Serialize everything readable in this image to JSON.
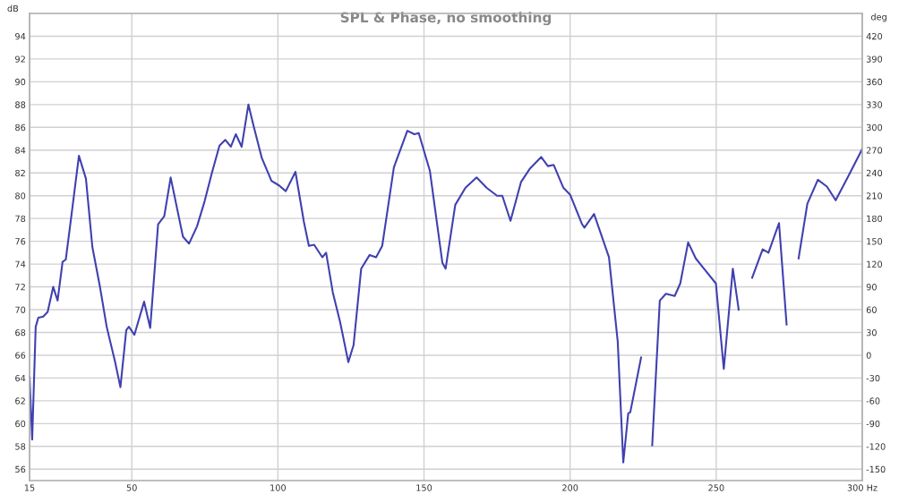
{
  "chart_data": {
    "type": "line",
    "title": "SPL & Phase, no smoothing",
    "ylabel": "dB",
    "y2label": "deg",
    "x": [
      15,
      15.9,
      17.1,
      18.0,
      19.7,
      21.2,
      23.1,
      24.6,
      26.3,
      27.4,
      29.2,
      31.9,
      34.3,
      36.5,
      39.1,
      41.4,
      44.2,
      46.1,
      48.1,
      49.0,
      50.9,
      54.2,
      56.3,
      59.0,
      61.1,
      63.3,
      67.5,
      69.6,
      72.3,
      74.9,
      77.4,
      80.0,
      82.0,
      83.9,
      85.6,
      87.6,
      89.9,
      91.7,
      94.5,
      97.8,
      100.4,
      102.7,
      106.0,
      108.9,
      110.6,
      112.4,
      115.2,
      116.5,
      118.8,
      121.3,
      124.1,
      125.9,
      128.5,
      131.4,
      133.6,
      135.7,
      139.7,
      144.3,
      146.7,
      148.2,
      152.0,
      156.3,
      157.4,
      160.7,
      164.2,
      168.0,
      171.4,
      175.0,
      176.8,
      179.6,
      183.2,
      186.3,
      190.1,
      192.4,
      194.4,
      197.7,
      200.0,
      204.1,
      204.9,
      208.2,
      213.3,
      216.3,
      218.2,
      219.9,
      220.6,
      224.3,
      226.8,
      228.1,
      230.7,
      232.8,
      235.8,
      237.7,
      240.4,
      243.0,
      246.1,
      249.9,
      252.6,
      255.7,
      257.7,
      259.8,
      262.3,
      265.9,
      267.9,
      271.5,
      274.1,
      275.6,
      278.2,
      281.2,
      284.8,
      287.9,
      290.9,
      295.0,
      300
    ],
    "series": [
      {
        "color": "#4040b0",
        "values": [
          64.1,
          58.6,
          68.5,
          69.3,
          69.4,
          69.8,
          72.0,
          70.8,
          74.2,
          74.4,
          78.0,
          83.5,
          81.5,
          75.5,
          72.0,
          68.5,
          65.5,
          63.2,
          68.2,
          68.5,
          67.8,
          70.7,
          68.4,
          77.5,
          78.2,
          81.6,
          76.4,
          75.8,
          77.3,
          79.5,
          82.0,
          84.4,
          84.9,
          84.3,
          85.4,
          84.3,
          88.0,
          86.1,
          83.3,
          81.3,
          80.9,
          80.4,
          82.1,
          77.7,
          75.6,
          75.7,
          74.6,
          75.0,
          71.5,
          68.9,
          65.4,
          66.9,
          73.6,
          74.8,
          74.6,
          75.6,
          82.5,
          85.7,
          85.4,
          85.5,
          82.2,
          74.1,
          73.6,
          79.2,
          80.7,
          81.6,
          80.7,
          80.0,
          80.0,
          77.8,
          81.2,
          82.4,
          83.4,
          82.6,
          82.7,
          80.7,
          80.1,
          77.5,
          77.2,
          78.4,
          74.6,
          67.2,
          56.6,
          60.9,
          61.0,
          65.8,
          null,
          58.1,
          70.8,
          71.4,
          71.2,
          72.3,
          75.9,
          74.5,
          73.5,
          72.3,
          64.8,
          73.6,
          70.0,
          null,
          72.8,
          75.3,
          75.0,
          77.6,
          68.7,
          null,
          74.5,
          79.3,
          81.4,
          80.8,
          79.6,
          81.6,
          84.1
        ]
      }
    ],
    "xlim": [
      15,
      300
    ],
    "xticks": [
      15,
      50,
      100,
      150,
      200,
      {
        "value": 250,
        "label": "250"
      },
      {
        "value": 300,
        "label": "300 Hz"
      }
    ],
    "ylim": [
      55,
      96
    ],
    "yticks": [
      56,
      58,
      60,
      62,
      64,
      66,
      68,
      70,
      72,
      74,
      76,
      78,
      80,
      82,
      84,
      86,
      88,
      90,
      92,
      94
    ],
    "y2lim": [
      -165,
      450
    ],
    "y2ticks": [
      -150,
      -120,
      -90,
      -60,
      -30,
      0,
      30,
      60,
      90,
      120,
      150,
      180,
      210,
      240,
      270,
      300,
      330,
      360,
      390,
      420
    ],
    "grid": true,
    "legend": false,
    "marker": "none",
    "line_style": "solid"
  }
}
